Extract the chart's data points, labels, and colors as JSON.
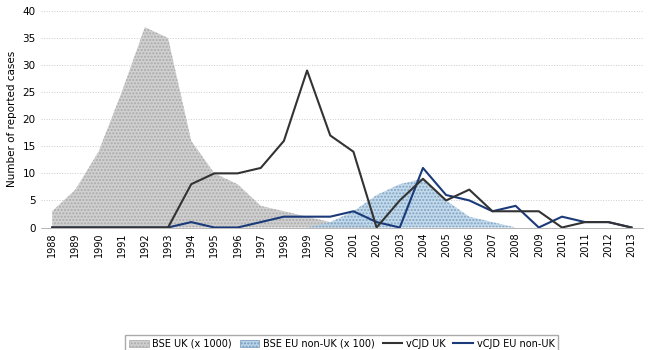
{
  "years": [
    1988,
    1989,
    1990,
    1991,
    1992,
    1993,
    1994,
    1995,
    1996,
    1997,
    1998,
    1999,
    2000,
    2001,
    2002,
    2003,
    2004,
    2005,
    2006,
    2007,
    2008,
    2009,
    2010,
    2011,
    2012,
    2013
  ],
  "bse_uk": [
    3,
    7,
    14,
    25,
    37,
    35,
    16,
    10,
    8,
    4,
    3,
    2,
    1,
    1,
    0,
    0,
    0,
    0,
    0,
    0,
    0,
    0,
    0,
    0,
    0,
    0
  ],
  "bse_eu_non_uk": [
    0,
    0,
    0,
    0,
    0,
    0,
    0,
    0,
    0,
    0,
    0,
    0,
    1,
    3,
    6,
    8,
    9,
    5,
    2,
    1,
    0,
    0,
    0,
    0,
    0,
    0
  ],
  "vcjd_uk": [
    0,
    0,
    0,
    0,
    0,
    0,
    8,
    10,
    10,
    11,
    16,
    29,
    17,
    14,
    0,
    5,
    9,
    5,
    7,
    3,
    3,
    3,
    0,
    1,
    1,
    0
  ],
  "vcjd_eu_non_uk": [
    0,
    0,
    0,
    0,
    0,
    0,
    1,
    0,
    0,
    1,
    2,
    2,
    2,
    3,
    1,
    0,
    11,
    6,
    5,
    3,
    4,
    0,
    2,
    1,
    1,
    0
  ],
  "bse_uk_color": "#d0d0d0",
  "bse_uk_hatch": ".....",
  "bse_eu_color": "#b8d4e8",
  "bse_eu_hatch": ".....",
  "vcjd_uk_color": "#333333",
  "vcjd_eu_color": "#1a3a7a",
  "ylabel": "Number of reported cases",
  "ylim": [
    0,
    40
  ],
  "yticks": [
    0,
    5,
    10,
    15,
    20,
    25,
    30,
    35,
    40
  ],
  "legend_labels": [
    "BSE UK (x 1000)",
    "BSE EU non-UK (x 100)",
    "vCJD UK",
    "vCJD EU non-UK"
  ],
  "bg_color": "#ffffff",
  "grid_color": "#cccccc"
}
